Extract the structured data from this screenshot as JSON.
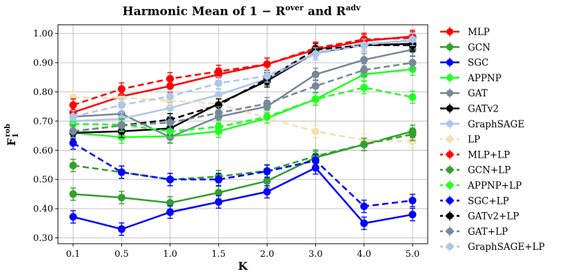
{
  "chart_data": {
    "type": "line",
    "title": "Harmonic Mean of  1 − R",
    "title_sup1": "over",
    "title_mid": " and R",
    "title_sup2": "adv",
    "xlabel": "K",
    "ylabel": "F",
    "ylabel_sub": "1",
    "ylabel_sup": "rob",
    "categories": [
      "0.1",
      "0.5",
      "1.0",
      "1.5",
      "2.0",
      "3.0",
      "4.0",
      "5.0"
    ],
    "yticks": [
      "0.30",
      "0.40",
      "0.50",
      "0.60",
      "0.70",
      "0.80",
      "0.90",
      "1.00"
    ],
    "ylim": [
      0.28,
      1.03
    ],
    "grid": true,
    "legend_position": "right, outside",
    "series": [
      {
        "name": "MLP",
        "color": "#ff0000",
        "dash": false,
        "values": [
          0.73,
          0.785,
          0.82,
          0.86,
          0.895,
          0.945,
          0.975,
          0.99
        ]
      },
      {
        "name": "GCN",
        "color": "#33a02c",
        "dash": false,
        "values": [
          0.45,
          0.438,
          0.42,
          0.455,
          0.495,
          0.575,
          0.62,
          0.665
        ]
      },
      {
        "name": "SGC",
        "color": "#0000ff",
        "dash": false,
        "values": [
          0.372,
          0.33,
          0.388,
          0.423,
          0.458,
          0.54,
          0.35,
          0.38
        ]
      },
      {
        "name": "APPNP",
        "color": "#22ff22",
        "dash": false,
        "values": [
          0.66,
          0.645,
          0.648,
          0.665,
          0.71,
          0.775,
          0.86,
          0.878
        ]
      },
      {
        "name": "GAT",
        "color": "#778899",
        "dash": false,
        "values": [
          0.715,
          0.725,
          0.645,
          0.715,
          0.75,
          0.86,
          0.91,
          0.945
        ]
      },
      {
        "name": "GATv2",
        "color": "#000000",
        "dash": false,
        "values": [
          0.66,
          0.665,
          0.675,
          0.76,
          0.838,
          0.935,
          0.96,
          0.965
        ]
      },
      {
        "name": "GraphSAGE",
        "color": "#aec7e8",
        "dash": false,
        "values": [
          0.7,
          0.708,
          0.745,
          0.79,
          0.845,
          0.935,
          0.965,
          0.975
        ]
      },
      {
        "name": "LP",
        "color": "#f5deb3",
        "dash": true,
        "values": [
          0.78,
          0.78,
          0.77,
          0.76,
          0.71,
          0.665,
          0.635,
          0.63
        ]
      },
      {
        "name": "MLP+LP",
        "color": "#ff0000",
        "dash": true,
        "values": [
          0.755,
          0.81,
          0.845,
          0.87,
          0.895,
          0.95,
          0.98,
          0.985
        ]
      },
      {
        "name": "GCN+LP",
        "color": "#33a02c",
        "dash": true,
        "values": [
          0.548,
          0.525,
          0.5,
          0.51,
          0.53,
          0.58,
          0.62,
          0.655
        ]
      },
      {
        "name": "APPNP+LP",
        "color": "#22ff22",
        "dash": true,
        "values": [
          0.69,
          0.688,
          0.665,
          0.68,
          0.715,
          0.775,
          0.815,
          0.782
        ]
      },
      {
        "name": "SGC+LP",
        "color": "#0000ff",
        "dash": true,
        "values": [
          0.625,
          0.525,
          0.5,
          0.5,
          0.528,
          0.565,
          0.408,
          0.428
        ]
      },
      {
        "name": "GATv2+LP",
        "color": "#000000",
        "dash": true,
        "values": [
          0.665,
          0.685,
          0.705,
          0.755,
          0.845,
          0.945,
          0.96,
          0.96
        ]
      },
      {
        "name": "GAT+LP",
        "color": "#778899",
        "dash": true,
        "values": [
          0.665,
          0.685,
          0.695,
          0.728,
          0.76,
          0.82,
          0.875,
          0.9
        ]
      },
      {
        "name": "GraphSAGE+LP",
        "color": "#aec7e8",
        "dash": true,
        "values": [
          0.715,
          0.755,
          0.785,
          0.83,
          0.855,
          0.93,
          0.96,
          0.98
        ]
      }
    ]
  }
}
